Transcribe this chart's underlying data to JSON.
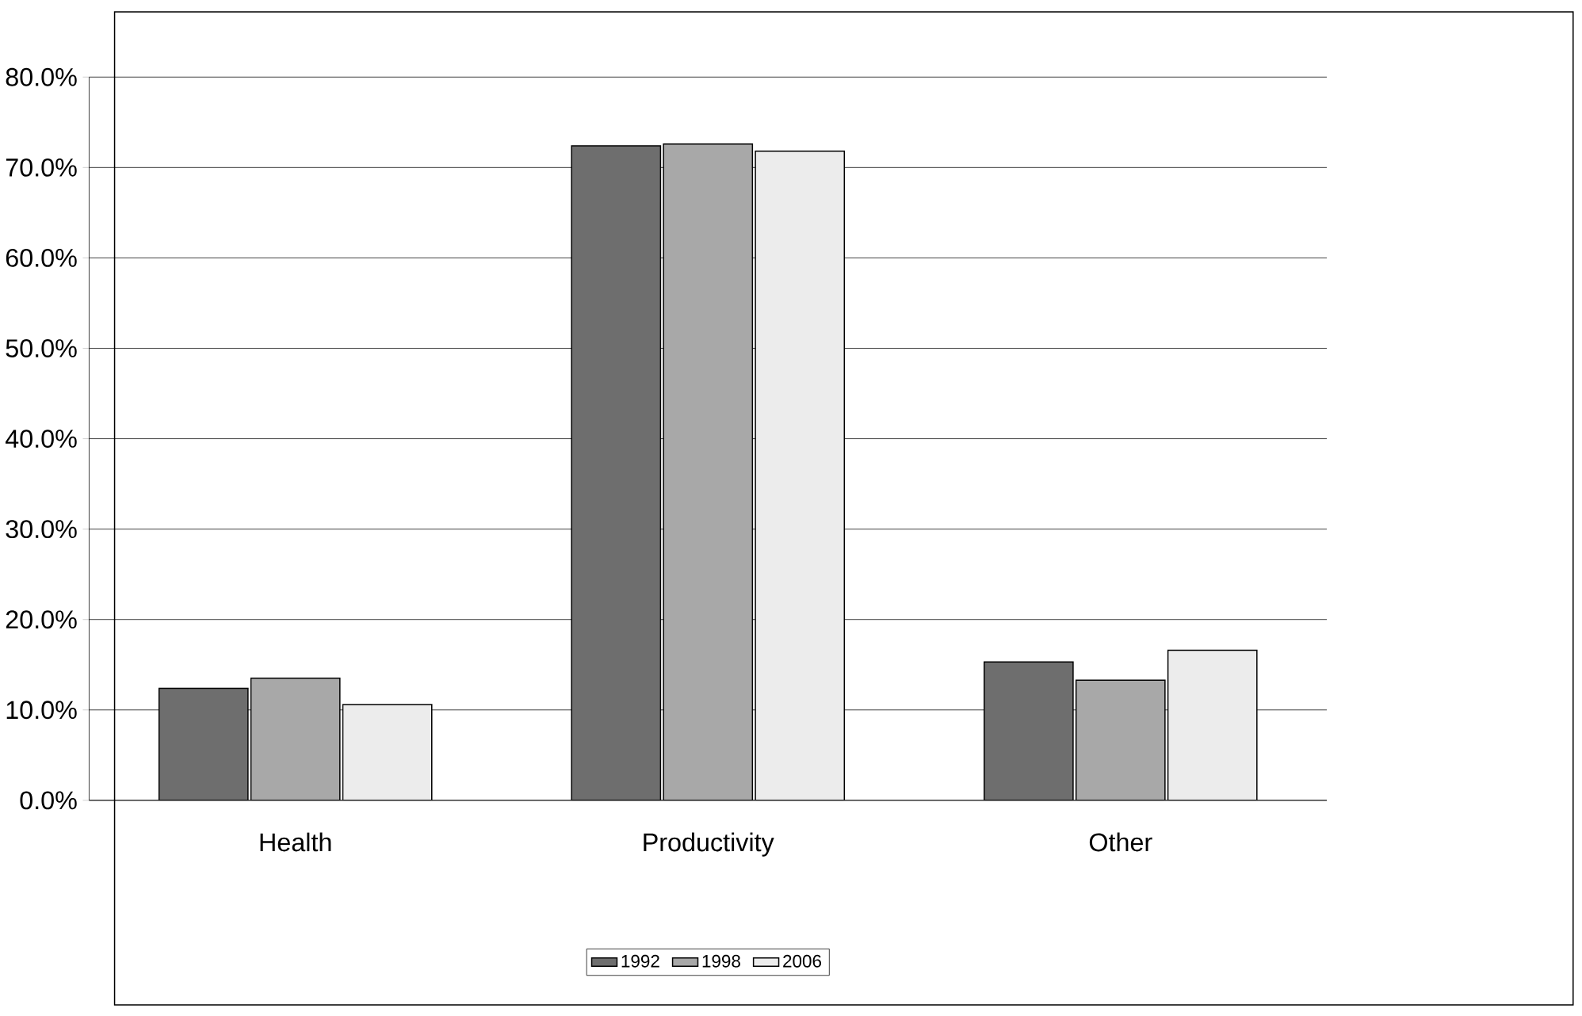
{
  "chart_data": {
    "type": "bar",
    "categories": [
      "Health",
      "Productivity",
      "Other"
    ],
    "series": [
      {
        "name": "1992",
        "color": "#6e6e6e",
        "values": [
          12.4,
          72.4,
          15.3
        ]
      },
      {
        "name": "1998",
        "color": "#a8a8a8",
        "values": [
          13.5,
          72.6,
          13.3
        ]
      },
      {
        "name": "2006",
        "color": "#ececec",
        "values": [
          10.6,
          71.8,
          16.6
        ]
      }
    ],
    "ylim": [
      0,
      80
    ],
    "yticks": [
      {
        "value": 0,
        "label": "0.0%"
      },
      {
        "value": 10,
        "label": "10.0%"
      },
      {
        "value": 20,
        "label": "20.0%"
      },
      {
        "value": 30,
        "label": "30.0%"
      },
      {
        "value": 40,
        "label": "40.0%"
      },
      {
        "value": 50,
        "label": "50.0%"
      },
      {
        "value": 60,
        "label": "60.0%"
      },
      {
        "value": 70,
        "label": "70.0%"
      },
      {
        "value": 80,
        "label": "80.0%"
      }
    ],
    "grid": "y",
    "legend": "bottom"
  }
}
